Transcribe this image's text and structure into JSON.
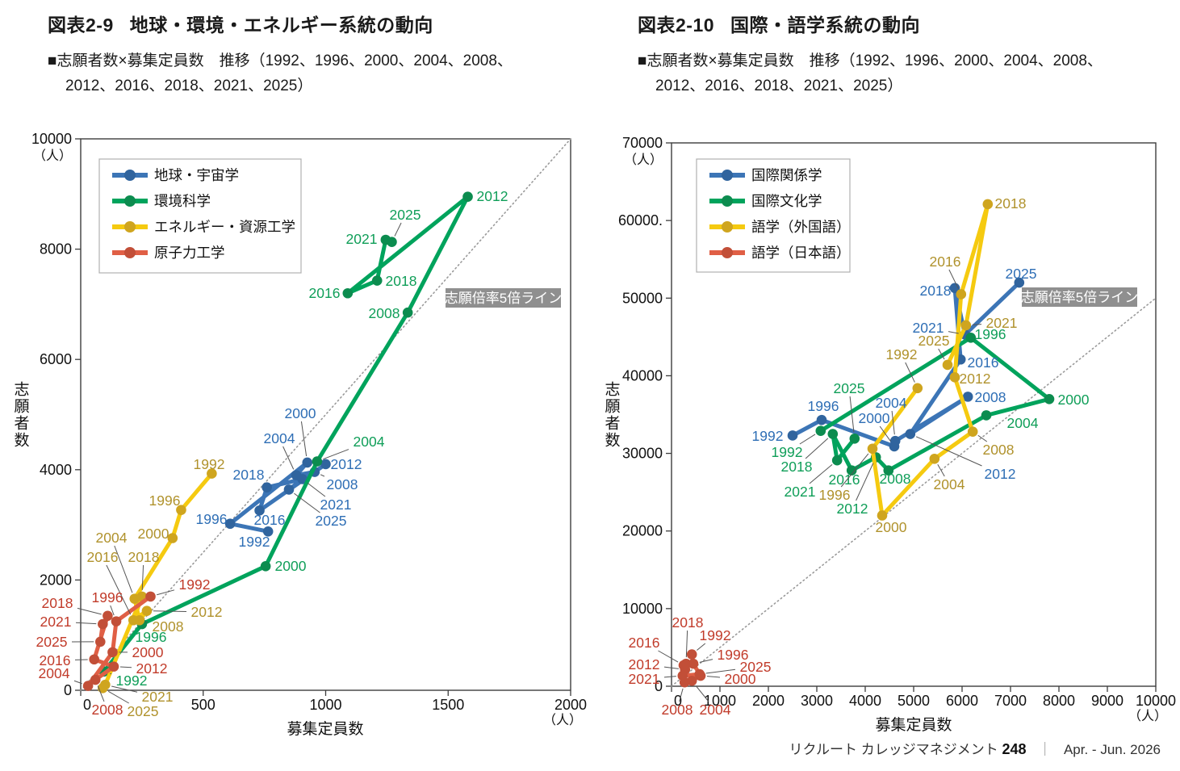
{
  "page": {
    "background": "#ffffff",
    "footer": {
      "publisher": "リクルート カレッジマネジメント",
      "issue_number": "248",
      "separator": "｜",
      "period": "Apr. - Jun. 2026"
    }
  },
  "charts": [
    {
      "figure_label": "図表2-9",
      "title": "地球・環境・エネルギー系統の動向",
      "subtitle_line1": "■志願者数×募集定員数　推移（1992、1996、2000、2004、2008、",
      "subtitle_line2": "2012、2016、2018、2021、2025）",
      "chart_data": {
        "type": "scatter",
        "xlabel": "募集定員数",
        "ylabel": "志願者数",
        "unit": "（人）",
        "xlim": [
          0,
          2000
        ],
        "ylim": [
          0,
          10000
        ],
        "x_ticks": [
          0,
          500,
          1000,
          1500,
          2000
        ],
        "y_ticks": [
          0,
          2000,
          4000,
          6000,
          8000,
          10000
        ],
        "x_tick_labels": [
          "0",
          "500",
          "1000",
          "1500",
          "2000"
        ],
        "y_tick_labels": [
          "0",
          "2000",
          "4000",
          "6000",
          "8000",
          "10000"
        ],
        "grid": false,
        "legend_position": "top-left",
        "ratio_line": {
          "label": "志願倍率5倍ライン",
          "slope": 5,
          "style": "dotted",
          "color": "#9a9a9a"
        },
        "years": [
          1992,
          1996,
          2000,
          2004,
          2008,
          2012,
          2016,
          2018,
          2021,
          2025
        ],
        "series": [
          {
            "name": "地球・宇宙学",
            "color": "#3c75b6",
            "point_color": "#30649e",
            "label_color": "#2e6eb5",
            "points": [
              [
                765,
                2880
              ],
              [
                610,
                3020
              ],
              [
                925,
                4130
              ],
              [
                880,
                3900
              ],
              [
                955,
                3960
              ],
              [
                1000,
                4100
              ],
              [
                730,
                3260
              ],
              [
                760,
                3680
              ],
              [
                905,
                3830
              ],
              [
                850,
                3640
              ]
            ]
          },
          {
            "name": "環境科学",
            "color": "#00a35c",
            "point_color": "#0c8c4f",
            "label_color": "#0f9e58",
            "points": [
              [
                95,
                340
              ],
              [
                250,
                1200
              ],
              [
                755,
                2250
              ],
              [
                965,
                4150
              ],
              [
                1335,
                6850
              ],
              [
                1580,
                8950
              ],
              [
                1090,
                7200
              ],
              [
                1210,
                7430
              ],
              [
                1245,
                8170
              ],
              [
                1270,
                8130
              ]
            ]
          },
          {
            "name": "エネルギー・資源工学",
            "color": "#f5ca10",
            "point_color": "#cfa51f",
            "label_color": "#b0922c",
            "points": [
              [
                535,
                3930
              ],
              [
                410,
                3270
              ],
              [
                375,
                2760
              ],
              [
                220,
                1660
              ],
              [
                240,
                1270
              ],
              [
                270,
                1440
              ],
              [
                215,
                1270
              ],
              [
                250,
                1700
              ],
              [
                100,
                100
              ],
              [
                90,
                40
              ]
            ]
          },
          {
            "name": "原子力工学",
            "color": "#e05f45",
            "point_color": "#c24f38",
            "label_color": "#c13b2a",
            "points": [
              [
                285,
                1700
              ],
              [
                145,
                1250
              ],
              [
                130,
                690
              ],
              [
                30,
                80
              ],
              [
                60,
                190
              ],
              [
                135,
                430
              ],
              [
                55,
                560
              ],
              [
                110,
                1350
              ],
              [
                90,
                1200
              ],
              [
                80,
                880
              ]
            ]
          }
        ]
      }
    },
    {
      "figure_label": "図表2-10",
      "title": "国際・語学系統の動向",
      "subtitle_line1": "■志願者数×募集定員数　推移（1992、1996、2000、2004、2008、",
      "subtitle_line2": "2012、2016、2018、2021、2025）",
      "chart_data": {
        "type": "scatter",
        "xlabel": "募集定員数",
        "ylabel": "志願者数",
        "unit": "（人）",
        "xlim": [
          0,
          10000
        ],
        "ylim": [
          0,
          70000
        ],
        "x_ticks": [
          0,
          1000,
          2000,
          3000,
          4000,
          5000,
          6000,
          7000,
          8000,
          9000,
          10000
        ],
        "y_ticks": [
          0,
          10000,
          20000,
          30000,
          40000,
          50000,
          60000,
          70000
        ],
        "x_tick_labels": [
          "0",
          "1000",
          "2000",
          "3000",
          "4000",
          "5000",
          "6000",
          "7000",
          "8000",
          "9000",
          "10000"
        ],
        "y_tick_labels": [
          "0",
          "10000",
          "20000",
          "30000",
          "40000",
          "50000",
          "60000.",
          "70000"
        ],
        "grid": false,
        "legend_position": "top-left",
        "ratio_line": {
          "label": "志願倍率5倍ライン",
          "slope": 5,
          "style": "dotted",
          "color": "#9a9a9a"
        },
        "years": [
          1992,
          1996,
          2000,
          2004,
          2008,
          2012,
          2016,
          2018,
          2021,
          2025
        ],
        "series": [
          {
            "name": "国際関係学",
            "color": "#3c75b6",
            "point_color": "#30649e",
            "label_color": "#2e6eb5",
            "points": [
              [
                2500,
                32300
              ],
              [
                3100,
                34300
              ],
              [
                4600,
                30900
              ],
              [
                4620,
                31600
              ],
              [
                6120,
                37300
              ],
              [
                4930,
                32500
              ],
              [
                5970,
                42100
              ],
              [
                5850,
                51300
              ],
              [
                6060,
                45300
              ],
              [
                7180,
                52000
              ]
            ]
          },
          {
            "name": "国際文化学",
            "color": "#00a35c",
            "point_color": "#0c8c4f",
            "label_color": "#0f9e58",
            "points": [
              [
                3080,
                32900
              ],
              [
                6180,
                44900
              ],
              [
                7800,
                37000
              ],
              [
                6500,
                34900
              ],
              [
                4480,
                27800
              ],
              [
                4220,
                29500
              ],
              [
                3720,
                27800
              ],
              [
                3330,
                32500
              ],
              [
                3420,
                29100
              ],
              [
                3780,
                31900
              ]
            ]
          },
          {
            "name": "語学（外国語）",
            "color": "#f5ca10",
            "point_color": "#cfa51f",
            "label_color": "#b0922c",
            "points": [
              [
                5080,
                38400
              ],
              [
                4150,
                30600
              ],
              [
                4350,
                22000
              ],
              [
                5430,
                29300
              ],
              [
                6220,
                32800
              ],
              [
                5850,
                39800
              ],
              [
                5980,
                50500
              ],
              [
                6530,
                62100
              ],
              [
                6080,
                46500
              ],
              [
                5700,
                41400
              ]
            ]
          },
          {
            "name": "語学（日本語）",
            "color": "#e05f45",
            "point_color": "#c24f38",
            "label_color": "#c13b2a",
            "points": [
              [
                420,
                4100
              ],
              [
                450,
                2900
              ],
              [
                600,
                1350
              ],
              [
                420,
                700
              ],
              [
                270,
                500
              ],
              [
                280,
                2150
              ],
              [
                250,
                2700
              ],
              [
                300,
                2900
              ],
              [
                230,
                1350
              ],
              [
                580,
                1550
              ]
            ]
          }
        ]
      }
    }
  ]
}
